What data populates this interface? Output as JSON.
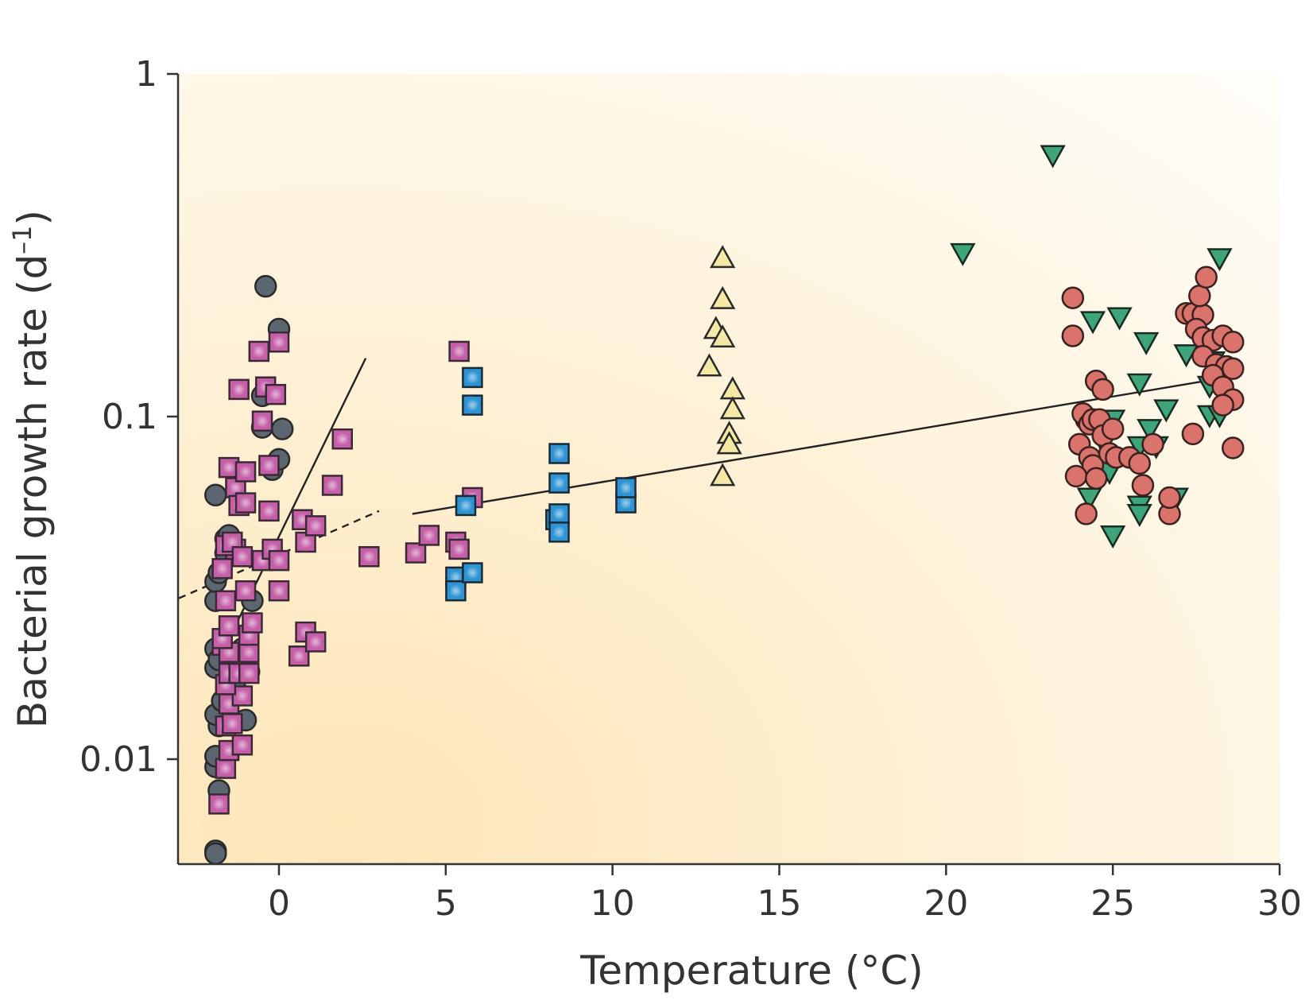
{
  "chart_data": {
    "type": "scatter",
    "title": "",
    "xlabel": "Temperature (°C)",
    "ylabel_main": "Bacterial growth rate (d",
    "ylabel_sup": "–1",
    "ylabel_close": ")",
    "xlim": [
      -3,
      30
    ],
    "ylim": [
      0.005,
      1
    ],
    "yscale": "log",
    "grid": false,
    "legend": "none",
    "xticks": [
      {
        "value": 0,
        "label": "0"
      },
      {
        "value": 5,
        "label": "5"
      },
      {
        "value": 10,
        "label": "10"
      },
      {
        "value": 15,
        "label": "15"
      },
      {
        "value": 20,
        "label": "20"
      },
      {
        "value": 25,
        "label": "25"
      },
      {
        "value": 30,
        "label": "30"
      }
    ],
    "yticks": [
      {
        "value": 0.01,
        "label": "0.01"
      },
      {
        "value": 0.1,
        "label": "0.1"
      },
      {
        "value": 1,
        "label": "1"
      }
    ],
    "background_gradient": {
      "warm": "#fde6b8",
      "cool": "#fffdf8"
    },
    "series": [
      {
        "marker": "circle",
        "fill": "#5c6670",
        "stroke": "#2a2a2a",
        "points": [
          [
            -1.9,
            0.0054
          ],
          [
            -1.9,
            0.0053
          ],
          [
            -1.8,
            0.0081
          ],
          [
            -1.9,
            0.0095
          ],
          [
            -1.9,
            0.0102
          ],
          [
            -1.8,
            0.0125
          ],
          [
            -1.9,
            0.0135
          ],
          [
            -1.7,
            0.0148
          ],
          [
            -1.9,
            0.0185
          ],
          [
            -1.9,
            0.021
          ],
          [
            -1.8,
            0.0195
          ],
          [
            -1.9,
            0.029
          ],
          [
            -1.9,
            0.033
          ],
          [
            -1.8,
            0.035
          ],
          [
            -1.6,
            0.044
          ],
          [
            -1.6,
            0.04
          ],
          [
            -1.5,
            0.045
          ],
          [
            -1.0,
            0.013
          ],
          [
            -1.1,
            0.021
          ],
          [
            -1.9,
            0.059
          ],
          [
            -0.5,
            0.115
          ],
          [
            -0.5,
            0.093
          ],
          [
            -0.2,
            0.07
          ],
          [
            0.0,
            0.075
          ],
          [
            0.1,
            0.092
          ],
          [
            0.0,
            0.18
          ],
          [
            -0.4,
            0.24
          ],
          [
            -0.8,
            0.029
          ],
          [
            -0.9,
            0.018
          ],
          [
            -1.3,
            0.016
          ]
        ]
      },
      {
        "marker": "square",
        "fill": "#c45fa8",
        "stroke": "#3a2a35",
        "points": [
          [
            -1.8,
            0.0074
          ],
          [
            -1.6,
            0.0094
          ],
          [
            -1.5,
            0.0106
          ],
          [
            -1.1,
            0.011
          ],
          [
            -1.6,
            0.0125
          ],
          [
            -1.4,
            0.0127
          ],
          [
            -1.5,
            0.0145
          ],
          [
            -1.1,
            0.0153
          ],
          [
            -1.6,
            0.0165
          ],
          [
            -1.5,
            0.0178
          ],
          [
            -1.2,
            0.0178
          ],
          [
            -0.9,
            0.0178
          ],
          [
            -1.7,
            0.0215
          ],
          [
            -1.5,
            0.0205
          ],
          [
            -0.9,
            0.0205
          ],
          [
            -1.7,
            0.0225
          ],
          [
            -0.9,
            0.023
          ],
          [
            -1.5,
            0.0245
          ],
          [
            -0.8,
            0.025
          ],
          [
            -1.6,
            0.029
          ],
          [
            -1.0,
            0.031
          ],
          [
            -1.7,
            0.036
          ],
          [
            -1.3,
            0.041
          ],
          [
            -1.6,
            0.042
          ],
          [
            -1.4,
            0.043
          ],
          [
            -1.1,
            0.039
          ],
          [
            -0.5,
            0.038
          ],
          [
            -0.2,
            0.041
          ],
          [
            0.0,
            0.038
          ],
          [
            0.0,
            0.031
          ],
          [
            -1.5,
            0.071
          ],
          [
            -1.3,
            0.062
          ],
          [
            -1.2,
            0.055
          ],
          [
            -1.0,
            0.069
          ],
          [
            -1.0,
            0.056
          ],
          [
            -0.3,
            0.072
          ],
          [
            -0.3,
            0.053
          ],
          [
            -0.5,
            0.097
          ],
          [
            -1.2,
            0.12
          ],
          [
            -0.4,
            0.122
          ],
          [
            -0.1,
            0.116
          ],
          [
            -0.6,
            0.155
          ],
          [
            0.0,
            0.165
          ],
          [
            0.7,
            0.05
          ],
          [
            0.8,
            0.043
          ],
          [
            1.1,
            0.048
          ],
          [
            1.6,
            0.063
          ],
          [
            1.9,
            0.086
          ],
          [
            0.6,
            0.02
          ],
          [
            0.8,
            0.0235
          ],
          [
            1.1,
            0.022
          ],
          [
            2.7,
            0.039
          ],
          [
            4.1,
            0.04
          ],
          [
            4.5,
            0.045
          ],
          [
            5.3,
            0.043
          ],
          [
            5.4,
            0.041
          ],
          [
            5.8,
            0.058
          ],
          [
            5.4,
            0.155
          ]
        ]
      },
      {
        "marker": "square",
        "fill": "#2d93d3",
        "stroke": "#1a2a35",
        "points": [
          [
            5.3,
            0.034
          ],
          [
            5.3,
            0.031
          ],
          [
            5.8,
            0.035
          ],
          [
            5.6,
            0.055
          ],
          [
            5.8,
            0.108
          ],
          [
            5.8,
            0.13
          ],
          [
            8.3,
            0.05
          ],
          [
            8.4,
            0.052
          ],
          [
            8.4,
            0.046
          ],
          [
            8.4,
            0.064
          ],
          [
            8.4,
            0.078
          ],
          [
            10.4,
            0.056
          ],
          [
            10.4,
            0.062
          ]
        ]
      },
      {
        "marker": "triangle-up",
        "fill": "#f4e9a4",
        "stroke": "#2a2a2a",
        "points": [
          [
            13.3,
            0.29
          ],
          [
            13.3,
            0.22
          ],
          [
            13.1,
            0.18
          ],
          [
            13.3,
            0.17
          ],
          [
            12.9,
            0.14
          ],
          [
            13.6,
            0.12
          ],
          [
            13.6,
            0.105
          ],
          [
            13.5,
            0.089
          ],
          [
            13.5,
            0.083
          ],
          [
            13.3,
            0.067
          ]
        ]
      },
      {
        "marker": "triangle-down",
        "fill": "#3ea57a",
        "stroke": "#1a2a22",
        "points": [
          [
            23.2,
            0.58
          ],
          [
            20.5,
            0.3
          ],
          [
            28.2,
            0.29
          ],
          [
            24.4,
            0.19
          ],
          [
            25.2,
            0.195
          ],
          [
            26.0,
            0.165
          ],
          [
            27.2,
            0.152
          ],
          [
            28.0,
            0.145
          ],
          [
            25.8,
            0.125
          ],
          [
            27.9,
            0.123
          ],
          [
            26.6,
            0.105
          ],
          [
            27.9,
            0.101
          ],
          [
            28.2,
            0.101
          ],
          [
            25.0,
            0.098
          ],
          [
            26.1,
            0.092
          ],
          [
            24.6,
            0.088
          ],
          [
            25.8,
            0.082
          ],
          [
            26.3,
            0.082
          ],
          [
            24.9,
            0.069
          ],
          [
            24.3,
            0.058
          ],
          [
            26.9,
            0.058
          ],
          [
            25.8,
            0.055
          ],
          [
            25.8,
            0.052
          ],
          [
            25.0,
            0.045
          ]
        ]
      },
      {
        "marker": "circle",
        "fill": "#d9736b",
        "stroke": "#3a2220",
        "points": [
          [
            23.8,
            0.222
          ],
          [
            23.8,
            0.172
          ],
          [
            24.5,
            0.127
          ],
          [
            24.7,
            0.12
          ],
          [
            24.2,
            0.098
          ],
          [
            24.1,
            0.102
          ],
          [
            24.3,
            0.095
          ],
          [
            24.4,
            0.098
          ],
          [
            24.6,
            0.098
          ],
          [
            24.7,
            0.088
          ],
          [
            25.0,
            0.092
          ],
          [
            24.0,
            0.083
          ],
          [
            24.3,
            0.076
          ],
          [
            24.4,
            0.072
          ],
          [
            23.9,
            0.067
          ],
          [
            24.5,
            0.066
          ],
          [
            24.9,
            0.078
          ],
          [
            25.1,
            0.076
          ],
          [
            25.5,
            0.076
          ],
          [
            25.8,
            0.073
          ],
          [
            26.2,
            0.083
          ],
          [
            25.9,
            0.063
          ],
          [
            24.2,
            0.052
          ],
          [
            26.7,
            0.052
          ],
          [
            26.7,
            0.058
          ],
          [
            27.2,
            0.2
          ],
          [
            27.4,
            0.2
          ],
          [
            27.7,
            0.198
          ],
          [
            27.6,
            0.225
          ],
          [
            27.8,
            0.255
          ],
          [
            27.5,
            0.18
          ],
          [
            27.7,
            0.17
          ],
          [
            28.0,
            0.167
          ],
          [
            28.3,
            0.172
          ],
          [
            28.6,
            0.165
          ],
          [
            27.7,
            0.15
          ],
          [
            28.1,
            0.142
          ],
          [
            28.4,
            0.14
          ],
          [
            28.6,
            0.138
          ],
          [
            28.0,
            0.132
          ],
          [
            28.3,
            0.122
          ],
          [
            28.6,
            0.112
          ],
          [
            28.3,
            0.108
          ],
          [
            27.4,
            0.089
          ],
          [
            28.6,
            0.081
          ]
        ]
      }
    ],
    "fit_lines": [
      {
        "style": "solid",
        "x": [
          -2.0,
          2.6
        ],
        "y": [
          0.0178,
          0.148
        ]
      },
      {
        "style": "dashed",
        "x": [
          -3.0,
          3.0
        ],
        "y": [
          0.0295,
          0.053
        ]
      },
      {
        "style": "solid",
        "x": [
          4.0,
          28.8
        ],
        "y": [
          0.052,
          0.132
        ]
      }
    ]
  }
}
